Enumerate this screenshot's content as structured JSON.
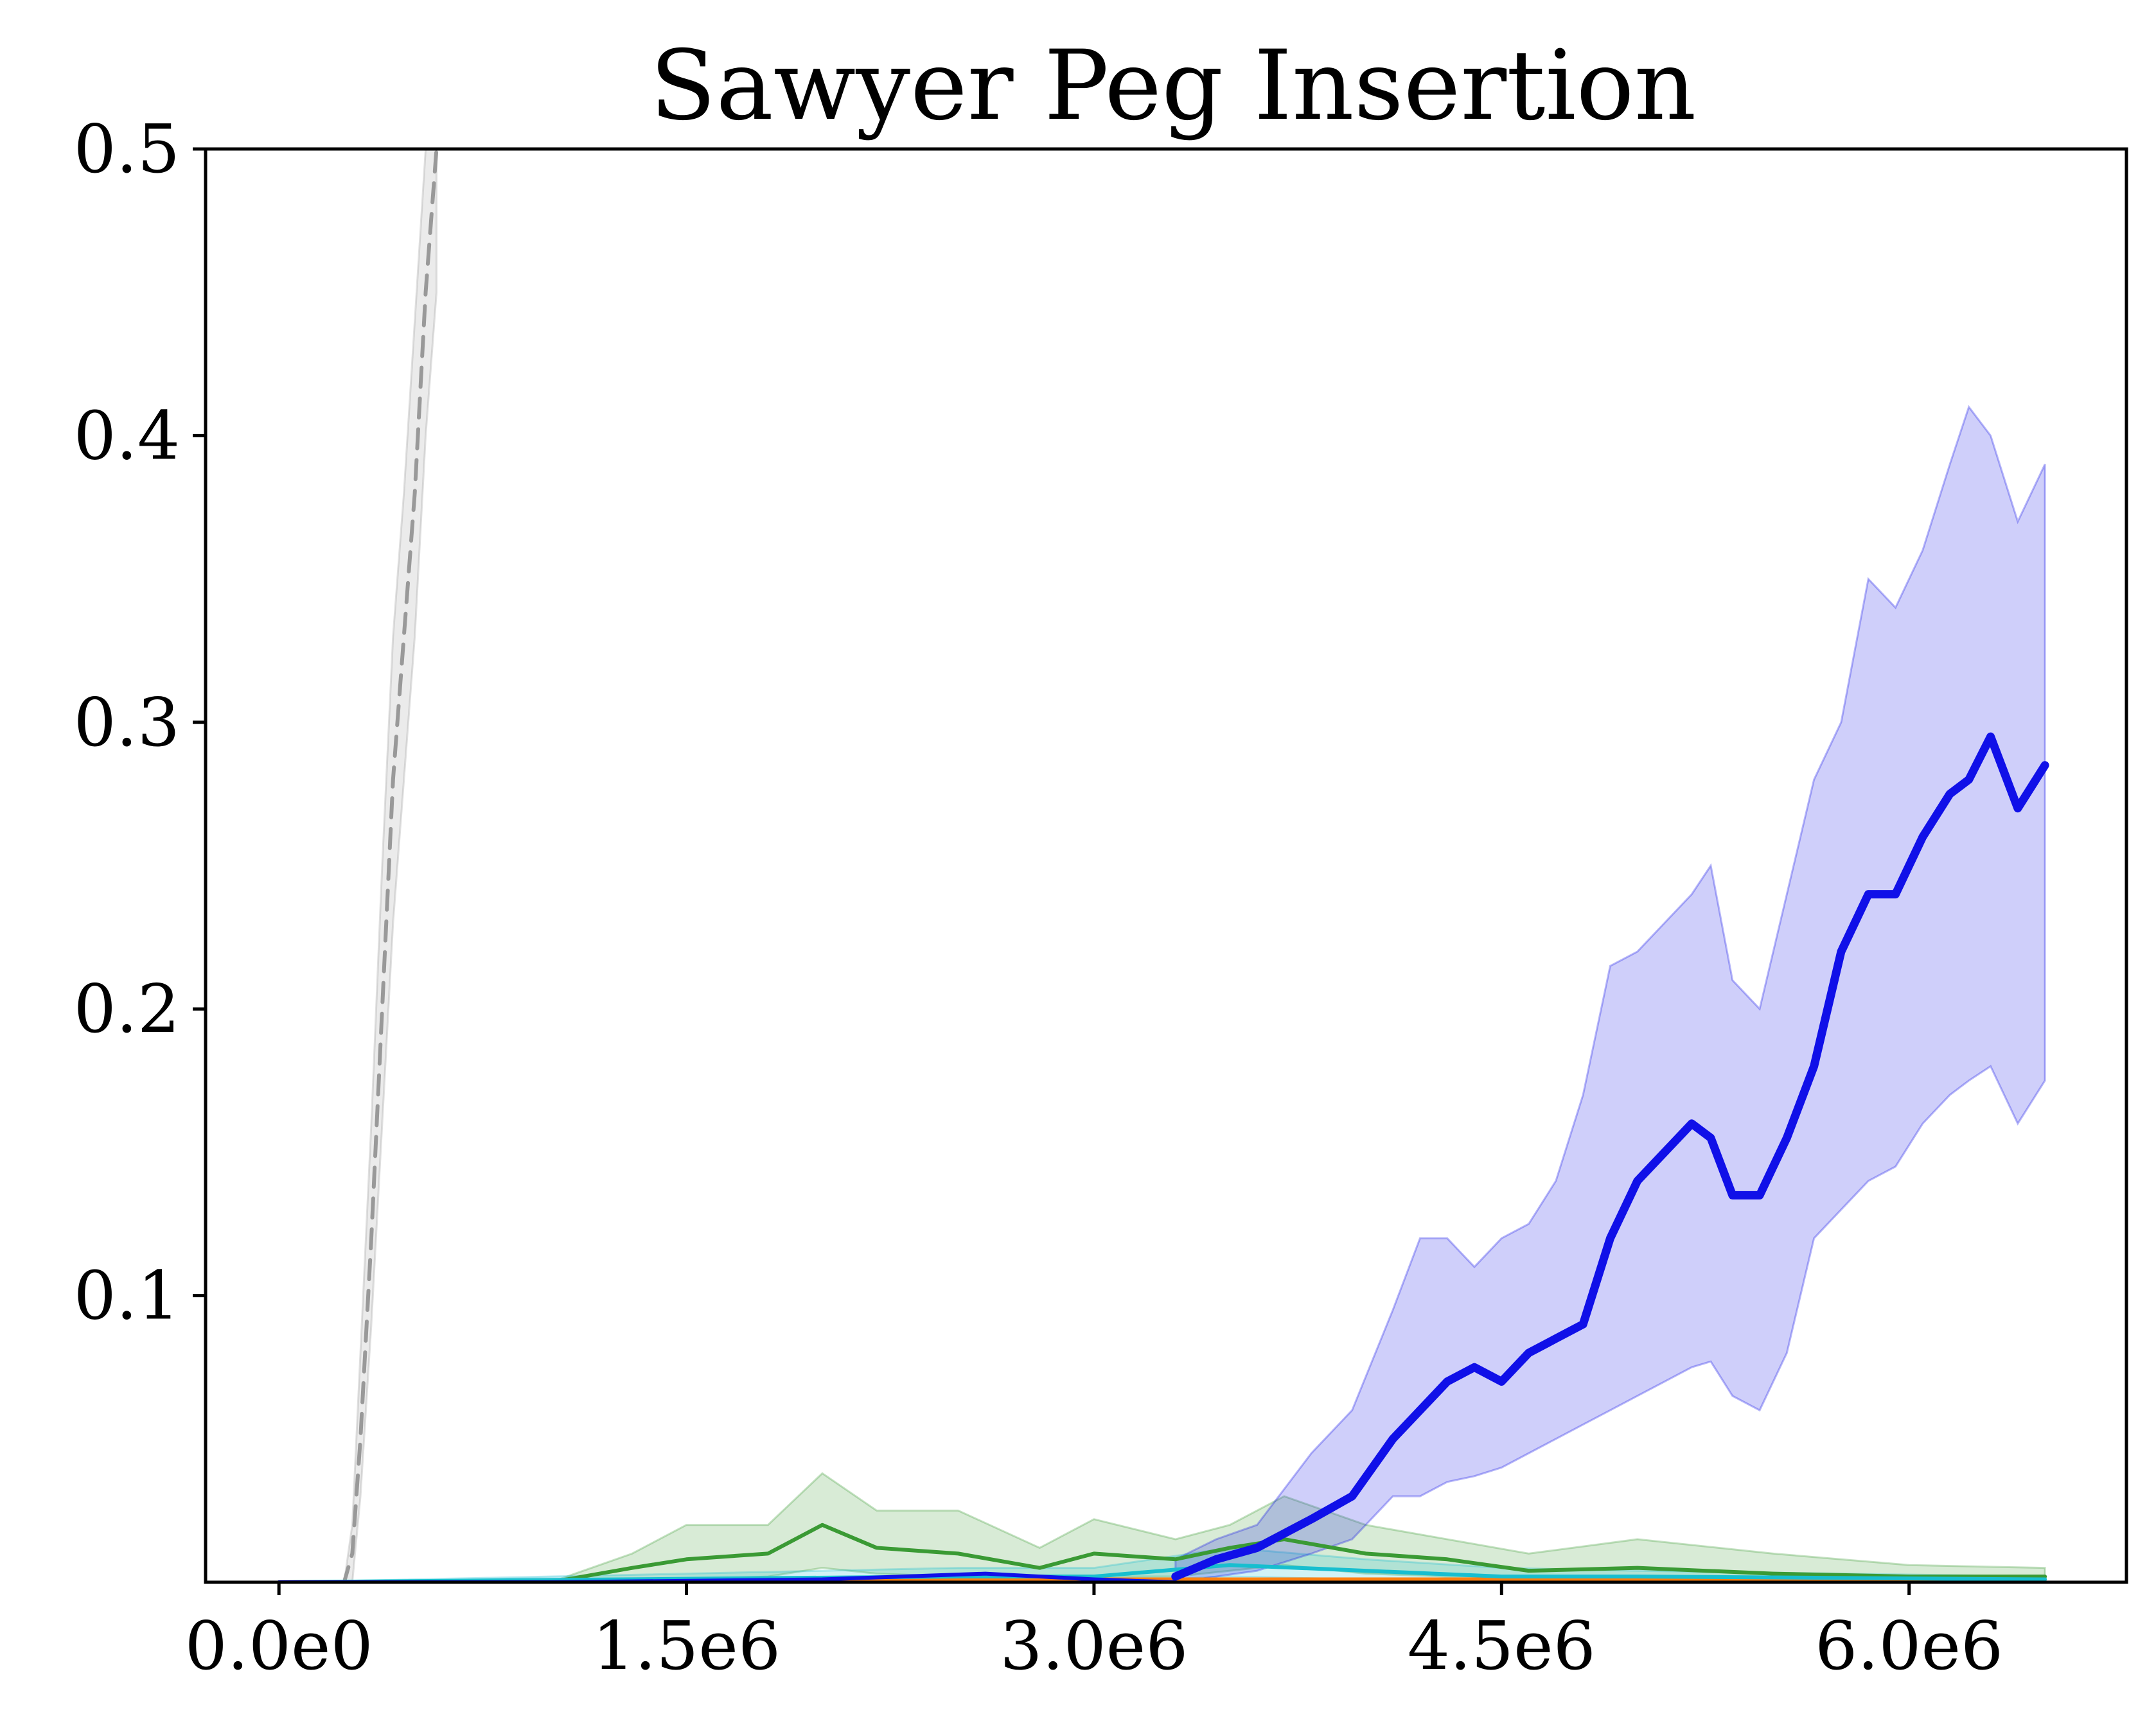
{
  "chart_data": {
    "type": "line",
    "title": "Sawyer Peg Insertion",
    "xlabel": "",
    "ylabel": "",
    "xlim": [
      -270000,
      6800000
    ],
    "ylim": [
      0,
      0.5
    ],
    "x_ticks": [
      0,
      1500000,
      3000000,
      4500000,
      6000000
    ],
    "x_tick_labels": [
      "0.0e0",
      "1.5e6",
      "3.0e6",
      "4.5e6",
      "6.0e6"
    ],
    "y_ticks": [
      0.1,
      0.2,
      0.3,
      0.4,
      0.5
    ],
    "y_tick_labels": [
      "0.1",
      "0.2",
      "0.3",
      "0.4",
      "0.5"
    ],
    "grid": false,
    "legend": "none",
    "series": [
      {
        "color": "#999999",
        "style": "dashed",
        "x": [
          0,
          240000,
          270000,
          300000,
          340000,
          380000,
          420000,
          460000,
          500000,
          540000,
          580000
        ],
        "y": [
          0,
          0,
          0.01,
          0.05,
          0.12,
          0.2,
          0.28,
          0.33,
          0.38,
          0.45,
          0.5
        ],
        "lower": [
          0,
          0,
          0.0,
          0.03,
          0.09,
          0.16,
          0.23,
          0.28,
          0.33,
          0.4,
          0.45
        ],
        "upper": [
          0,
          0,
          0.02,
          0.08,
          0.16,
          0.25,
          0.33,
          0.38,
          0.44,
          0.5,
          0.5
        ]
      },
      {
        "color": "#3a9a34",
        "style": "solid",
        "x": [
          0,
          1000000,
          1300000,
          1500000,
          1800000,
          2000000,
          2200000,
          2500000,
          2800000,
          3000000,
          3300000,
          3500000,
          3700000,
          4000000,
          4300000,
          4600000,
          5000000,
          5500000,
          6000000,
          6500000
        ],
        "y": [
          0,
          0,
          0.005,
          0.008,
          0.01,
          0.02,
          0.012,
          0.01,
          0.005,
          0.01,
          0.008,
          0.012,
          0.015,
          0.01,
          0.008,
          0.004,
          0.005,
          0.003,
          0.002,
          0.002
        ],
        "lower": [
          0,
          0,
          0.0,
          0.001,
          0.002,
          0.005,
          0.003,
          0.002,
          0.001,
          0.002,
          0.002,
          0.004,
          0.006,
          0.003,
          0.002,
          0.001,
          0.002,
          0.001,
          0.001,
          0.001
        ],
        "upper": [
          0,
          0,
          0.01,
          0.02,
          0.02,
          0.038,
          0.025,
          0.025,
          0.012,
          0.022,
          0.015,
          0.02,
          0.03,
          0.02,
          0.015,
          0.01,
          0.015,
          0.01,
          0.006,
          0.005
        ]
      },
      {
        "color": "#ff7f0e",
        "style": "solid",
        "x": [
          0,
          2000000,
          4000000,
          5500000,
          6500000
        ],
        "y": [
          0,
          0.001,
          0.001,
          0.001,
          0.001
        ]
      },
      {
        "color": "#17becf",
        "style": "solid",
        "x": [
          0,
          2500000,
          3000000,
          3500000,
          4000000,
          4500000,
          5000000,
          6500000
        ],
        "y": [
          0,
          0.002,
          0.002,
          0.006,
          0.004,
          0.002,
          0.002,
          0.001
        ],
        "lower": [
          0,
          0,
          0,
          0.002,
          0.001,
          0,
          0,
          0
        ],
        "upper": [
          0,
          0.005,
          0.005,
          0.012,
          0.008,
          0.005,
          0.004,
          0.002
        ]
      },
      {
        "color": "#1010e8",
        "style": "solid",
        "x": [
          0,
          1000000,
          2000000,
          2600000,
          3000000,
          3300000
        ],
        "y": [
          0,
          0,
          0.001,
          0.003,
          0.001,
          0.0
        ]
      },
      {
        "color": "#1010e8",
        "style": "bold",
        "x": [
          3300000,
          3450000,
          3600000,
          3800000,
          3950000,
          4100000,
          4200000,
          4300000,
          4400000,
          4500000,
          4600000,
          4700000,
          4800000,
          4900000,
          5000000,
          5100000,
          5200000,
          5270000,
          5350000,
          5450000,
          5550000,
          5650000,
          5750000,
          5850000,
          5950000,
          6050000,
          6150000,
          6220000,
          6300000,
          6400000,
          6500000
        ],
        "y": [
          0.002,
          0.008,
          0.012,
          0.022,
          0.03,
          0.05,
          0.06,
          0.07,
          0.075,
          0.07,
          0.08,
          0.085,
          0.09,
          0.12,
          0.14,
          0.15,
          0.16,
          0.155,
          0.135,
          0.135,
          0.155,
          0.18,
          0.22,
          0.24,
          0.24,
          0.26,
          0.275,
          0.28,
          0.295,
          0.27,
          0.285
        ],
        "lower": [
          0,
          0.002,
          0.004,
          0.01,
          0.015,
          0.03,
          0.03,
          0.035,
          0.037,
          0.04,
          0.045,
          0.05,
          0.055,
          0.06,
          0.065,
          0.07,
          0.075,
          0.077,
          0.065,
          0.06,
          0.08,
          0.12,
          0.13,
          0.14,
          0.145,
          0.16,
          0.17,
          0.175,
          0.18,
          0.16,
          0.175
        ],
        "upper": [
          0.008,
          0.015,
          0.02,
          0.045,
          0.06,
          0.095,
          0.12,
          0.12,
          0.11,
          0.12,
          0.125,
          0.14,
          0.17,
          0.215,
          0.22,
          0.23,
          0.24,
          0.25,
          0.21,
          0.2,
          0.24,
          0.28,
          0.3,
          0.35,
          0.34,
          0.36,
          0.39,
          0.41,
          0.4,
          0.37,
          0.39
        ]
      }
    ]
  }
}
